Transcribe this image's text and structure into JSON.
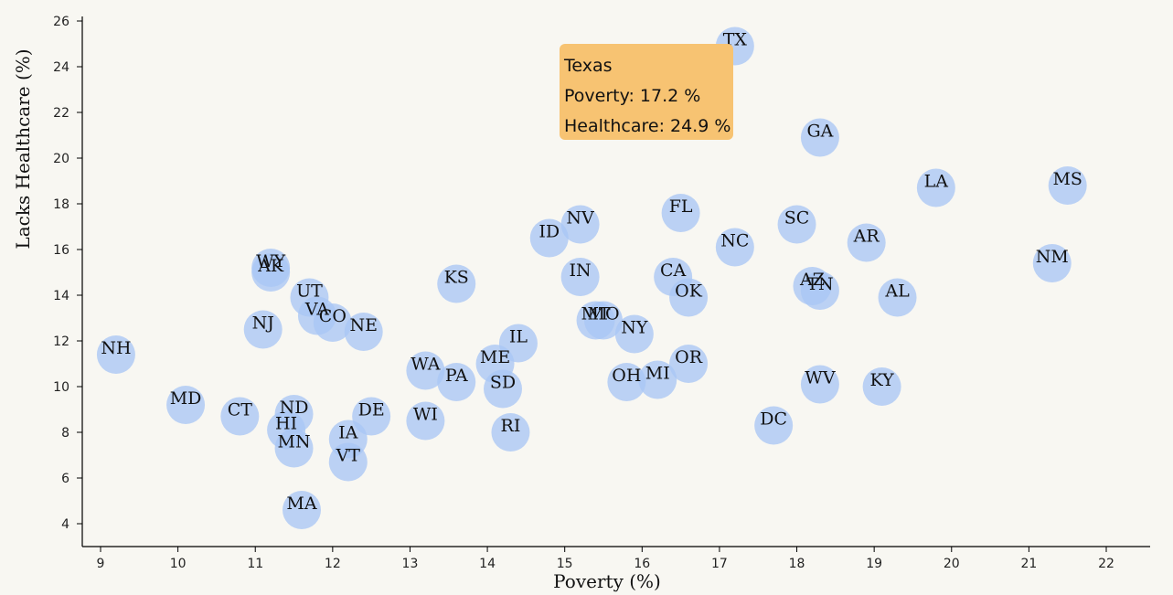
{
  "chart_data": {
    "type": "scatter",
    "title": "",
    "xlabel": "Poverty (%)",
    "ylabel": "Lacks Healthcare (%)",
    "xlim": [
      8.8,
      22.6
    ],
    "ylim": [
      3,
      26.2
    ],
    "x_ticks": [
      9,
      10,
      11,
      12,
      13,
      14,
      15,
      16,
      17,
      18,
      19,
      20,
      21,
      22
    ],
    "y_ticks": [
      4,
      6,
      8,
      10,
      12,
      14,
      16,
      18,
      20,
      22,
      24,
      26
    ],
    "grid": false,
    "marker_color": "#a9c6f5",
    "points": [
      {
        "label": "TX",
        "x": 17.2,
        "y": 24.9
      },
      {
        "label": "GA",
        "x": 18.3,
        "y": 20.9
      },
      {
        "label": "LA",
        "x": 19.8,
        "y": 18.7
      },
      {
        "label": "MS",
        "x": 21.5,
        "y": 18.8
      },
      {
        "label": "FL",
        "x": 16.5,
        "y": 17.6
      },
      {
        "label": "SC",
        "x": 18.0,
        "y": 17.1
      },
      {
        "label": "NV",
        "x": 15.2,
        "y": 17.1
      },
      {
        "label": "ID",
        "x": 14.8,
        "y": 16.5
      },
      {
        "label": "NC",
        "x": 17.2,
        "y": 16.1
      },
      {
        "label": "AR",
        "x": 18.9,
        "y": 16.3
      },
      {
        "label": "NM",
        "x": 21.3,
        "y": 15.4
      },
      {
        "label": "WY",
        "x": 11.2,
        "y": 15.2
      },
      {
        "label": "AK",
        "x": 11.2,
        "y": 15.0
      },
      {
        "label": "KS",
        "x": 13.6,
        "y": 14.5
      },
      {
        "label": "IN",
        "x": 15.2,
        "y": 14.8
      },
      {
        "label": "CA",
        "x": 16.4,
        "y": 14.8
      },
      {
        "label": "AZ",
        "x": 18.2,
        "y": 14.4
      },
      {
        "label": "TN",
        "x": 18.3,
        "y": 14.2
      },
      {
        "label": "OK",
        "x": 16.6,
        "y": 13.9
      },
      {
        "label": "AL",
        "x": 19.3,
        "y": 13.9
      },
      {
        "label": "UT",
        "x": 11.7,
        "y": 13.9
      },
      {
        "label": "VA",
        "x": 11.8,
        "y": 13.1
      },
      {
        "label": "CO",
        "x": 12.0,
        "y": 12.8
      },
      {
        "label": "NE",
        "x": 12.4,
        "y": 12.4
      },
      {
        "label": "NJ",
        "x": 11.1,
        "y": 12.5
      },
      {
        "label": "MT",
        "x": 15.4,
        "y": 12.9
      },
      {
        "label": "MO",
        "x": 15.5,
        "y": 12.9
      },
      {
        "label": "NY",
        "x": 15.9,
        "y": 12.3
      },
      {
        "label": "IL",
        "x": 14.4,
        "y": 11.9
      },
      {
        "label": "NH",
        "x": 9.2,
        "y": 11.4
      },
      {
        "label": "ME",
        "x": 14.1,
        "y": 11.0
      },
      {
        "label": "WA",
        "x": 13.2,
        "y": 10.7
      },
      {
        "label": "PA",
        "x": 13.6,
        "y": 10.2
      },
      {
        "label": "SD",
        "x": 14.2,
        "y": 9.9
      },
      {
        "label": "OR",
        "x": 16.6,
        "y": 11.0
      },
      {
        "label": "OH",
        "x": 15.8,
        "y": 10.2
      },
      {
        "label": "MI",
        "x": 16.2,
        "y": 10.3
      },
      {
        "label": "WV",
        "x": 18.3,
        "y": 10.1
      },
      {
        "label": "KY",
        "x": 19.1,
        "y": 10.0
      },
      {
        "label": "MD",
        "x": 10.1,
        "y": 9.2
      },
      {
        "label": "CT",
        "x": 10.8,
        "y": 8.7
      },
      {
        "label": "ND",
        "x": 11.5,
        "y": 8.8
      },
      {
        "label": "HI",
        "x": 11.4,
        "y": 8.1
      },
      {
        "label": "MN",
        "x": 11.5,
        "y": 7.3
      },
      {
        "label": "DE",
        "x": 12.5,
        "y": 8.7
      },
      {
        "label": "WI",
        "x": 13.2,
        "y": 8.5
      },
      {
        "label": "IA",
        "x": 12.2,
        "y": 7.7
      },
      {
        "label": "VT",
        "x": 12.2,
        "y": 6.7
      },
      {
        "label": "RI",
        "x": 14.3,
        "y": 8.0
      },
      {
        "label": "DC",
        "x": 17.7,
        "y": 8.3
      },
      {
        "label": "MA",
        "x": 11.6,
        "y": 4.6
      }
    ]
  },
  "tooltip": {
    "name": "Texas",
    "poverty_line": "Poverty: 17.2 %",
    "healthcare_line": "Healthcare: 24.9 %"
  }
}
